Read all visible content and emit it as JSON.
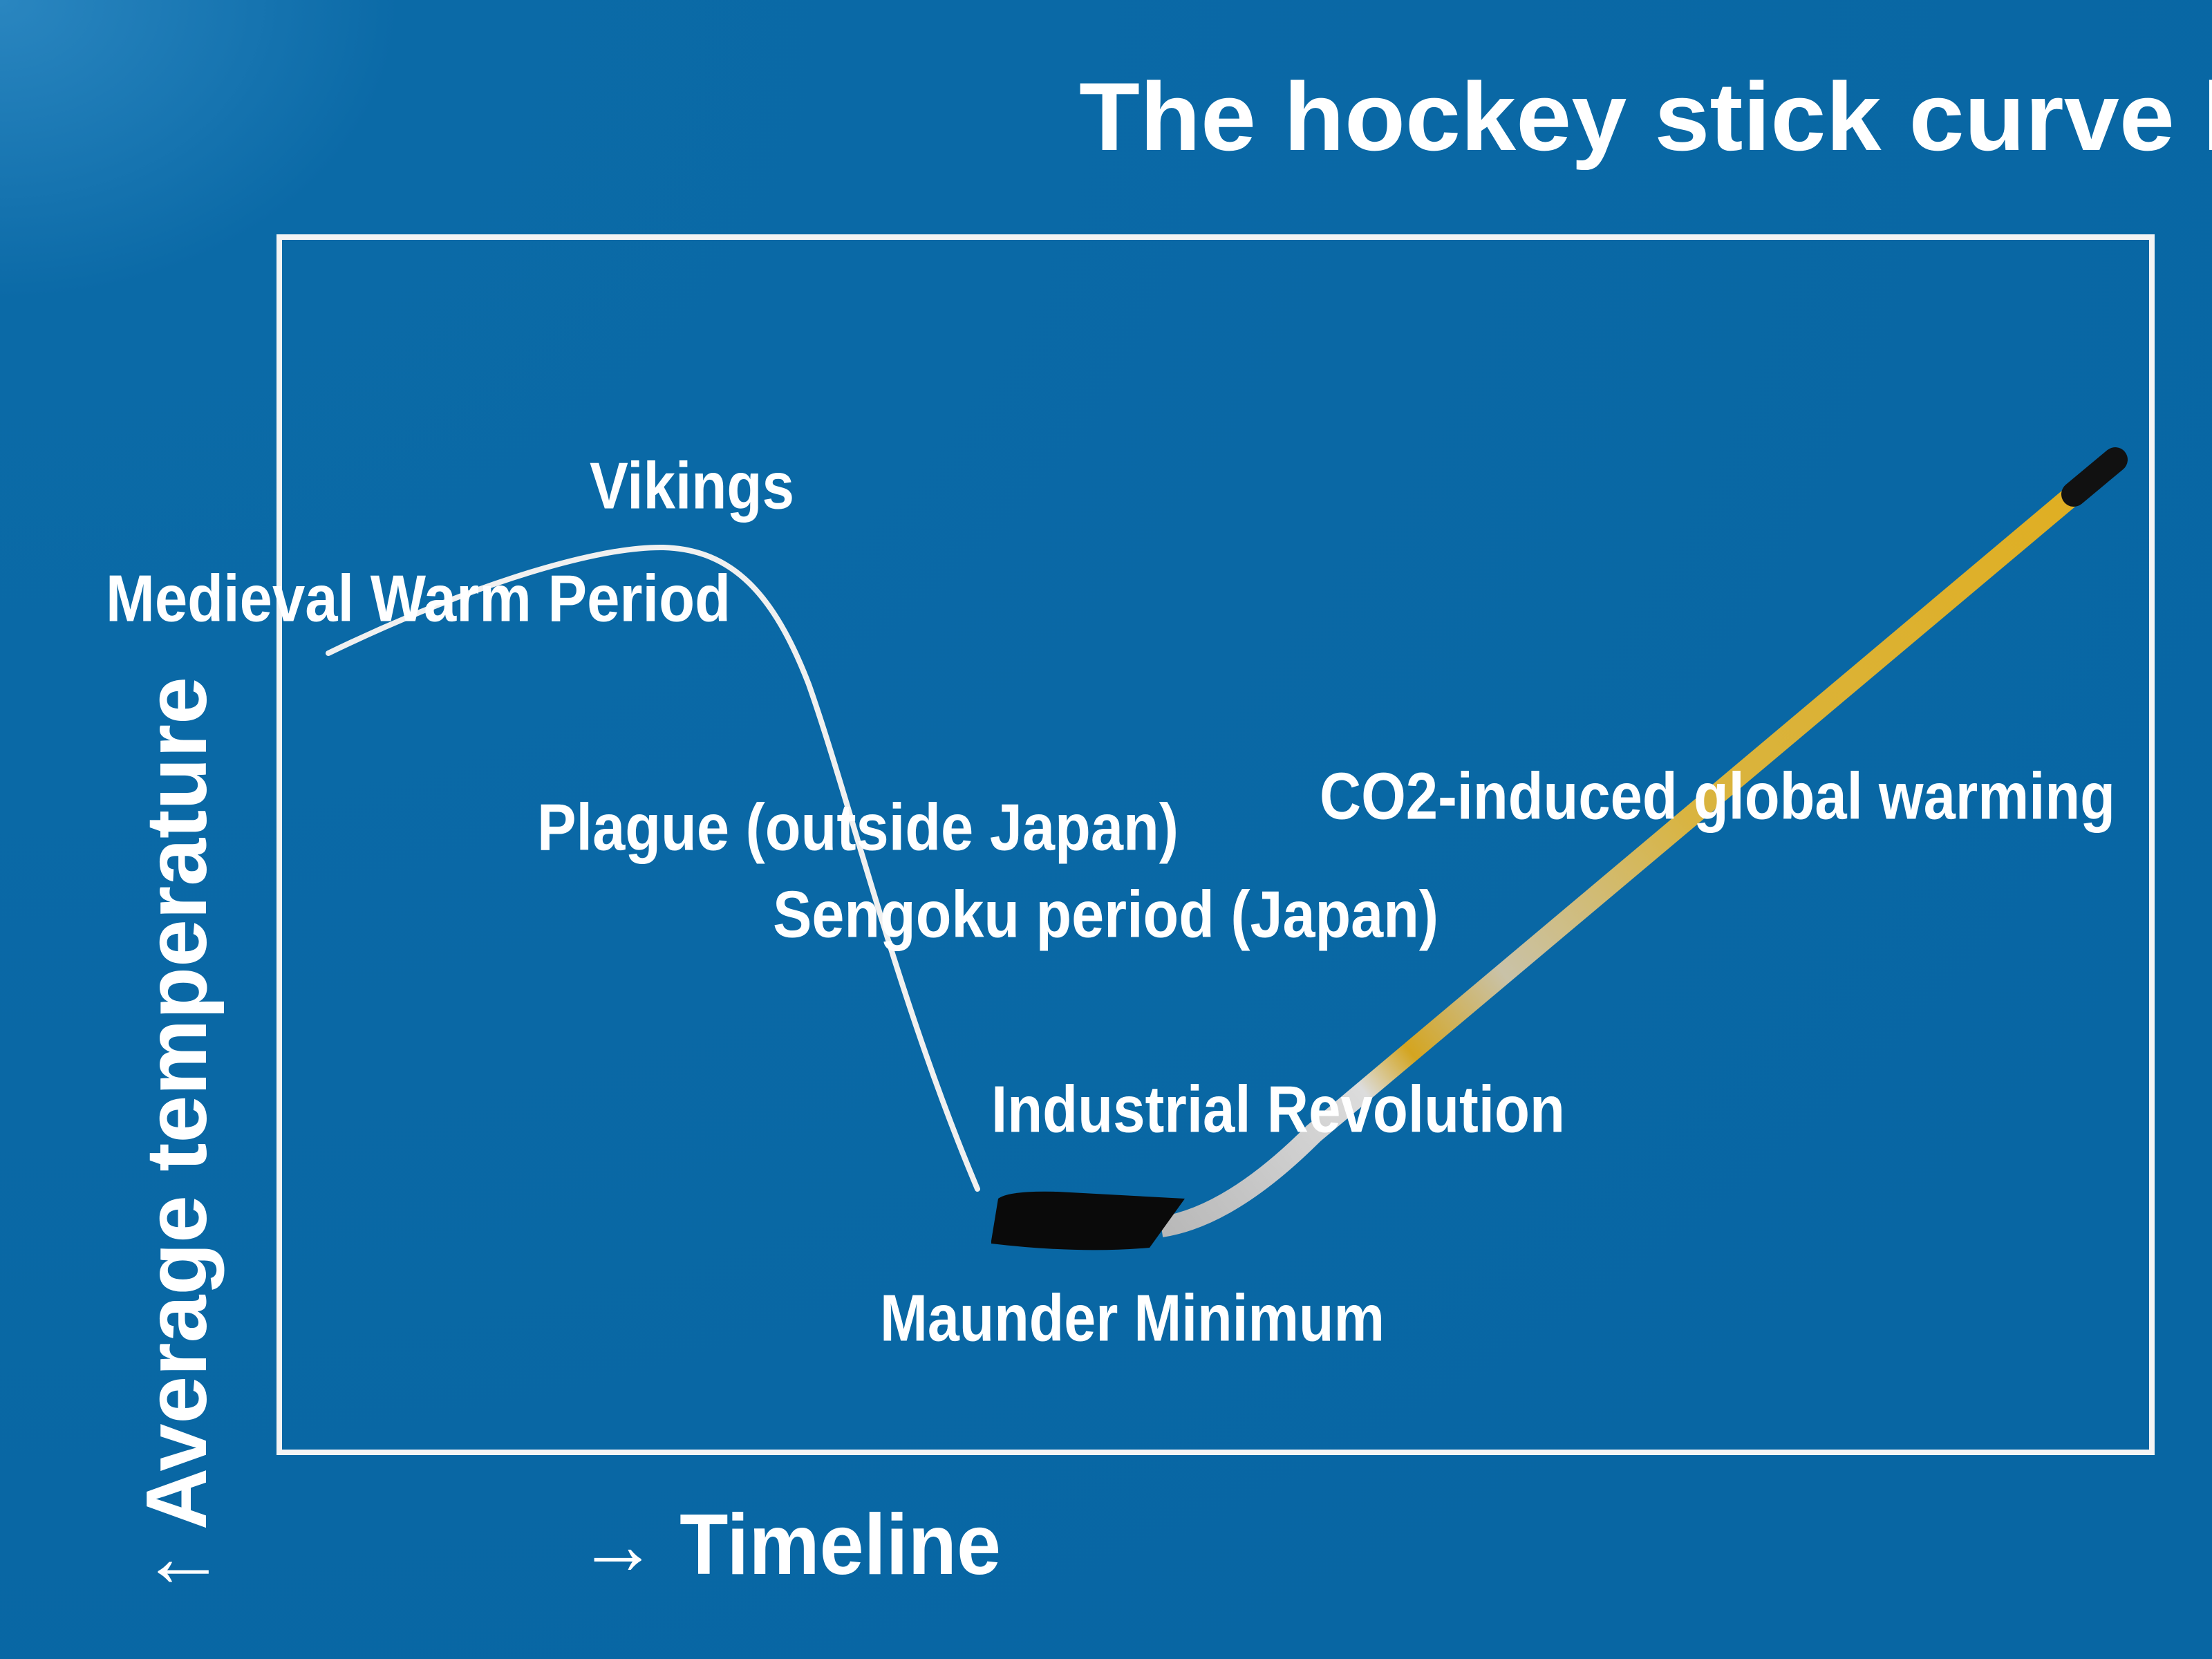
{
  "title": "The hockey stick curve lie",
  "labels": [
    "Vikings",
    "Medieval Warm Period",
    "Plague (outside Japan)",
    "Sengoku period (Japan)",
    "CO2-induced global warming",
    "Industrial Revolution",
    "Maunder Minimum"
  ],
  "axes": {
    "x": "→ Timeline",
    "y": "↑ Average temperature"
  }
}
